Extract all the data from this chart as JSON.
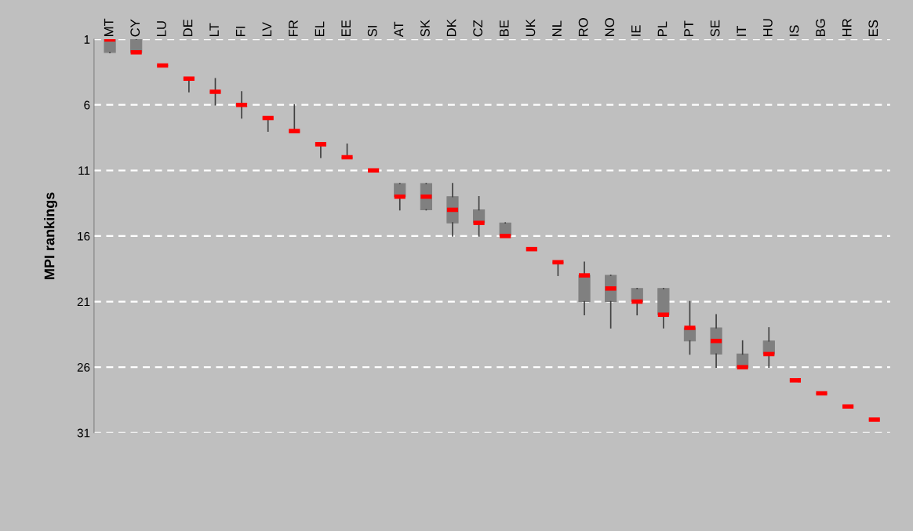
{
  "chart_data": {
    "type": "box",
    "ylabel": "MPI rankings",
    "categories": [
      "MT",
      "CY",
      "LU",
      "DE",
      "LT",
      "FI",
      "LV",
      "FR",
      "EL",
      "EE",
      "SI",
      "AT",
      "SK",
      "DK",
      "CZ",
      "BE",
      "UK",
      "NL",
      "RO",
      "NO",
      "IE",
      "PL",
      "PT",
      "SE",
      "IT",
      "HU",
      "IS",
      "BG",
      "HR",
      "ES"
    ],
    "series": [
      {
        "color": "#808080",
        "boxes": [
          {
            "low": 1,
            "q1": 1,
            "median": 1,
            "q3": 2,
            "high": 2
          },
          {
            "low": 1,
            "q1": 1,
            "median": 2,
            "q3": 2,
            "high": 2
          },
          {
            "low": 3,
            "q1": 3,
            "median": 3,
            "q3": 3,
            "high": 3
          },
          {
            "low": 4,
            "q1": 4,
            "median": 4,
            "q3": 4,
            "high": 5
          },
          {
            "low": 4,
            "q1": 5,
            "median": 5,
            "q3": 5,
            "high": 6
          },
          {
            "low": 5,
            "q1": 6,
            "median": 6,
            "q3": 6,
            "high": 7
          },
          {
            "low": 7,
            "q1": 7,
            "median": 7,
            "q3": 7,
            "high": 8
          },
          {
            "low": 6,
            "q1": 8,
            "median": 8,
            "q3": 8,
            "high": 8
          },
          {
            "low": 9,
            "q1": 9,
            "median": 9,
            "q3": 9,
            "high": 10
          },
          {
            "low": 9,
            "q1": 10,
            "median": 10,
            "q3": 10,
            "high": 10
          },
          {
            "low": 11,
            "q1": 11,
            "median": 11,
            "q3": 11,
            "high": 11
          },
          {
            "low": 12,
            "q1": 12,
            "median": 13,
            "q3": 13,
            "high": 14
          },
          {
            "low": 12,
            "q1": 12,
            "median": 13,
            "q3": 14,
            "high": 14
          },
          {
            "low": 12,
            "q1": 13,
            "median": 14,
            "q3": 15,
            "high": 16
          },
          {
            "low": 13,
            "q1": 14,
            "median": 15,
            "q3": 15,
            "high": 16
          },
          {
            "low": 15,
            "q1": 15,
            "median": 16,
            "q3": 16,
            "high": 16
          },
          {
            "low": 17,
            "q1": 17,
            "median": 17,
            "q3": 17,
            "high": 17
          },
          {
            "low": 18,
            "q1": 18,
            "median": 18,
            "q3": 18,
            "high": 19
          },
          {
            "low": 18,
            "q1": 19,
            "median": 19,
            "q3": 21,
            "high": 22
          },
          {
            "low": 19,
            "q1": 19,
            "median": 20,
            "q3": 21,
            "high": 23
          },
          {
            "low": 20,
            "q1": 20,
            "median": 21,
            "q3": 21,
            "high": 22
          },
          {
            "low": 20,
            "q1": 20,
            "median": 22,
            "q3": 22,
            "high": 23
          },
          {
            "low": 21,
            "q1": 23,
            "median": 23,
            "q3": 24,
            "high": 25
          },
          {
            "low": 22,
            "q1": 23,
            "median": 24,
            "q3": 25,
            "high": 26
          },
          {
            "low": 24,
            "q1": 25,
            "median": 26,
            "q3": 26,
            "high": 26
          },
          {
            "low": 23,
            "q1": 24,
            "median": 25,
            "q3": 25,
            "high": 26
          },
          {
            "low": 27,
            "q1": 27,
            "median": 27,
            "q3": 27,
            "high": 27
          },
          {
            "low": 28,
            "q1": 28,
            "median": 28,
            "q3": 28,
            "high": 28
          },
          {
            "low": 29,
            "q1": 29,
            "median": 29,
            "q3": 29,
            "high": 29
          },
          {
            "low": 30,
            "q1": 30,
            "median": 30,
            "q3": 30,
            "high": 30
          }
        ]
      }
    ],
    "ylim": [
      31,
      1
    ],
    "yticks": [
      1,
      6,
      11,
      16,
      21,
      26,
      31
    ],
    "grid": "y"
  }
}
